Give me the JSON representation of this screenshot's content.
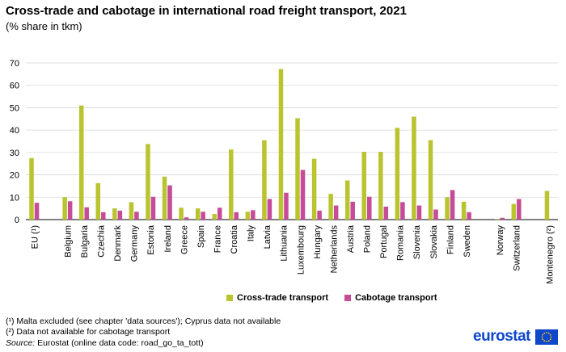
{
  "header": {
    "title": "Cross-trade and cabotage in international road freight transport, 2021",
    "subtitle": "(% share in tkm)"
  },
  "chart_data": {
    "type": "bar",
    "title": "Cross-trade and cabotage in international road freight transport, 2021",
    "subtitle": "(% share in tkm)",
    "ylim": [
      0,
      70
    ],
    "yticks": [
      0,
      10,
      20,
      30,
      40,
      50,
      60,
      70
    ],
    "grid": true,
    "legend_position": "bottom",
    "categories": [
      "EU (¹)",
      "",
      "Belgium",
      "Bulgaria",
      "Czechia",
      "Denmark",
      "Germany",
      "Estonia",
      "Ireland",
      "Greece",
      "Spain",
      "France",
      "Croatia",
      "Italy",
      "Latvia",
      "Lithuania",
      "Luxembourg",
      "Hungary",
      "Netherlands",
      "Austria",
      "Poland",
      "Portugal",
      "Romania",
      "Slovenia",
      "Slovakia",
      "Finland",
      "Sweden",
      "",
      "Norway",
      "Switzerland",
      "",
      "Montenegro (²)"
    ],
    "series": [
      {
        "name": "Cross-trade transport",
        "color": "#b9c42f",
        "values": [
          27.5,
          null,
          10.0,
          51.0,
          16.3,
          5.0,
          7.8,
          33.8,
          19.2,
          5.3,
          5.0,
          2.5,
          31.3,
          3.5,
          35.5,
          67.3,
          45.3,
          27.2,
          11.5,
          17.5,
          30.3,
          30.3,
          41.0,
          46.0,
          35.5,
          10.0,
          8.0,
          null,
          0.3,
          7.0,
          null,
          12.8
        ]
      },
      {
        "name": "Cabotage transport",
        "color": "#c64b98",
        "values": [
          7.5,
          null,
          8.2,
          5.5,
          3.3,
          4.0,
          3.5,
          10.2,
          15.3,
          1.0,
          3.5,
          5.3,
          3.3,
          4.2,
          9.2,
          12.0,
          22.2,
          4.0,
          6.3,
          8.0,
          10.2,
          5.8,
          7.8,
          6.3,
          4.5,
          13.2,
          3.3,
          null,
          0.8,
          9.2,
          null,
          null
        ]
      }
    ]
  },
  "footnotes": {
    "note1": "(¹) Malta excluded (see chapter 'data sources'); Cyprus data not available",
    "note2": "(²) Data not available for cabotage transport",
    "source_label": "Source:",
    "source_text": " Eurostat (online data code: road_go_ta_tott)"
  },
  "logo": {
    "text": "eurostat",
    "flag_icon": "eu-flag-icon"
  }
}
